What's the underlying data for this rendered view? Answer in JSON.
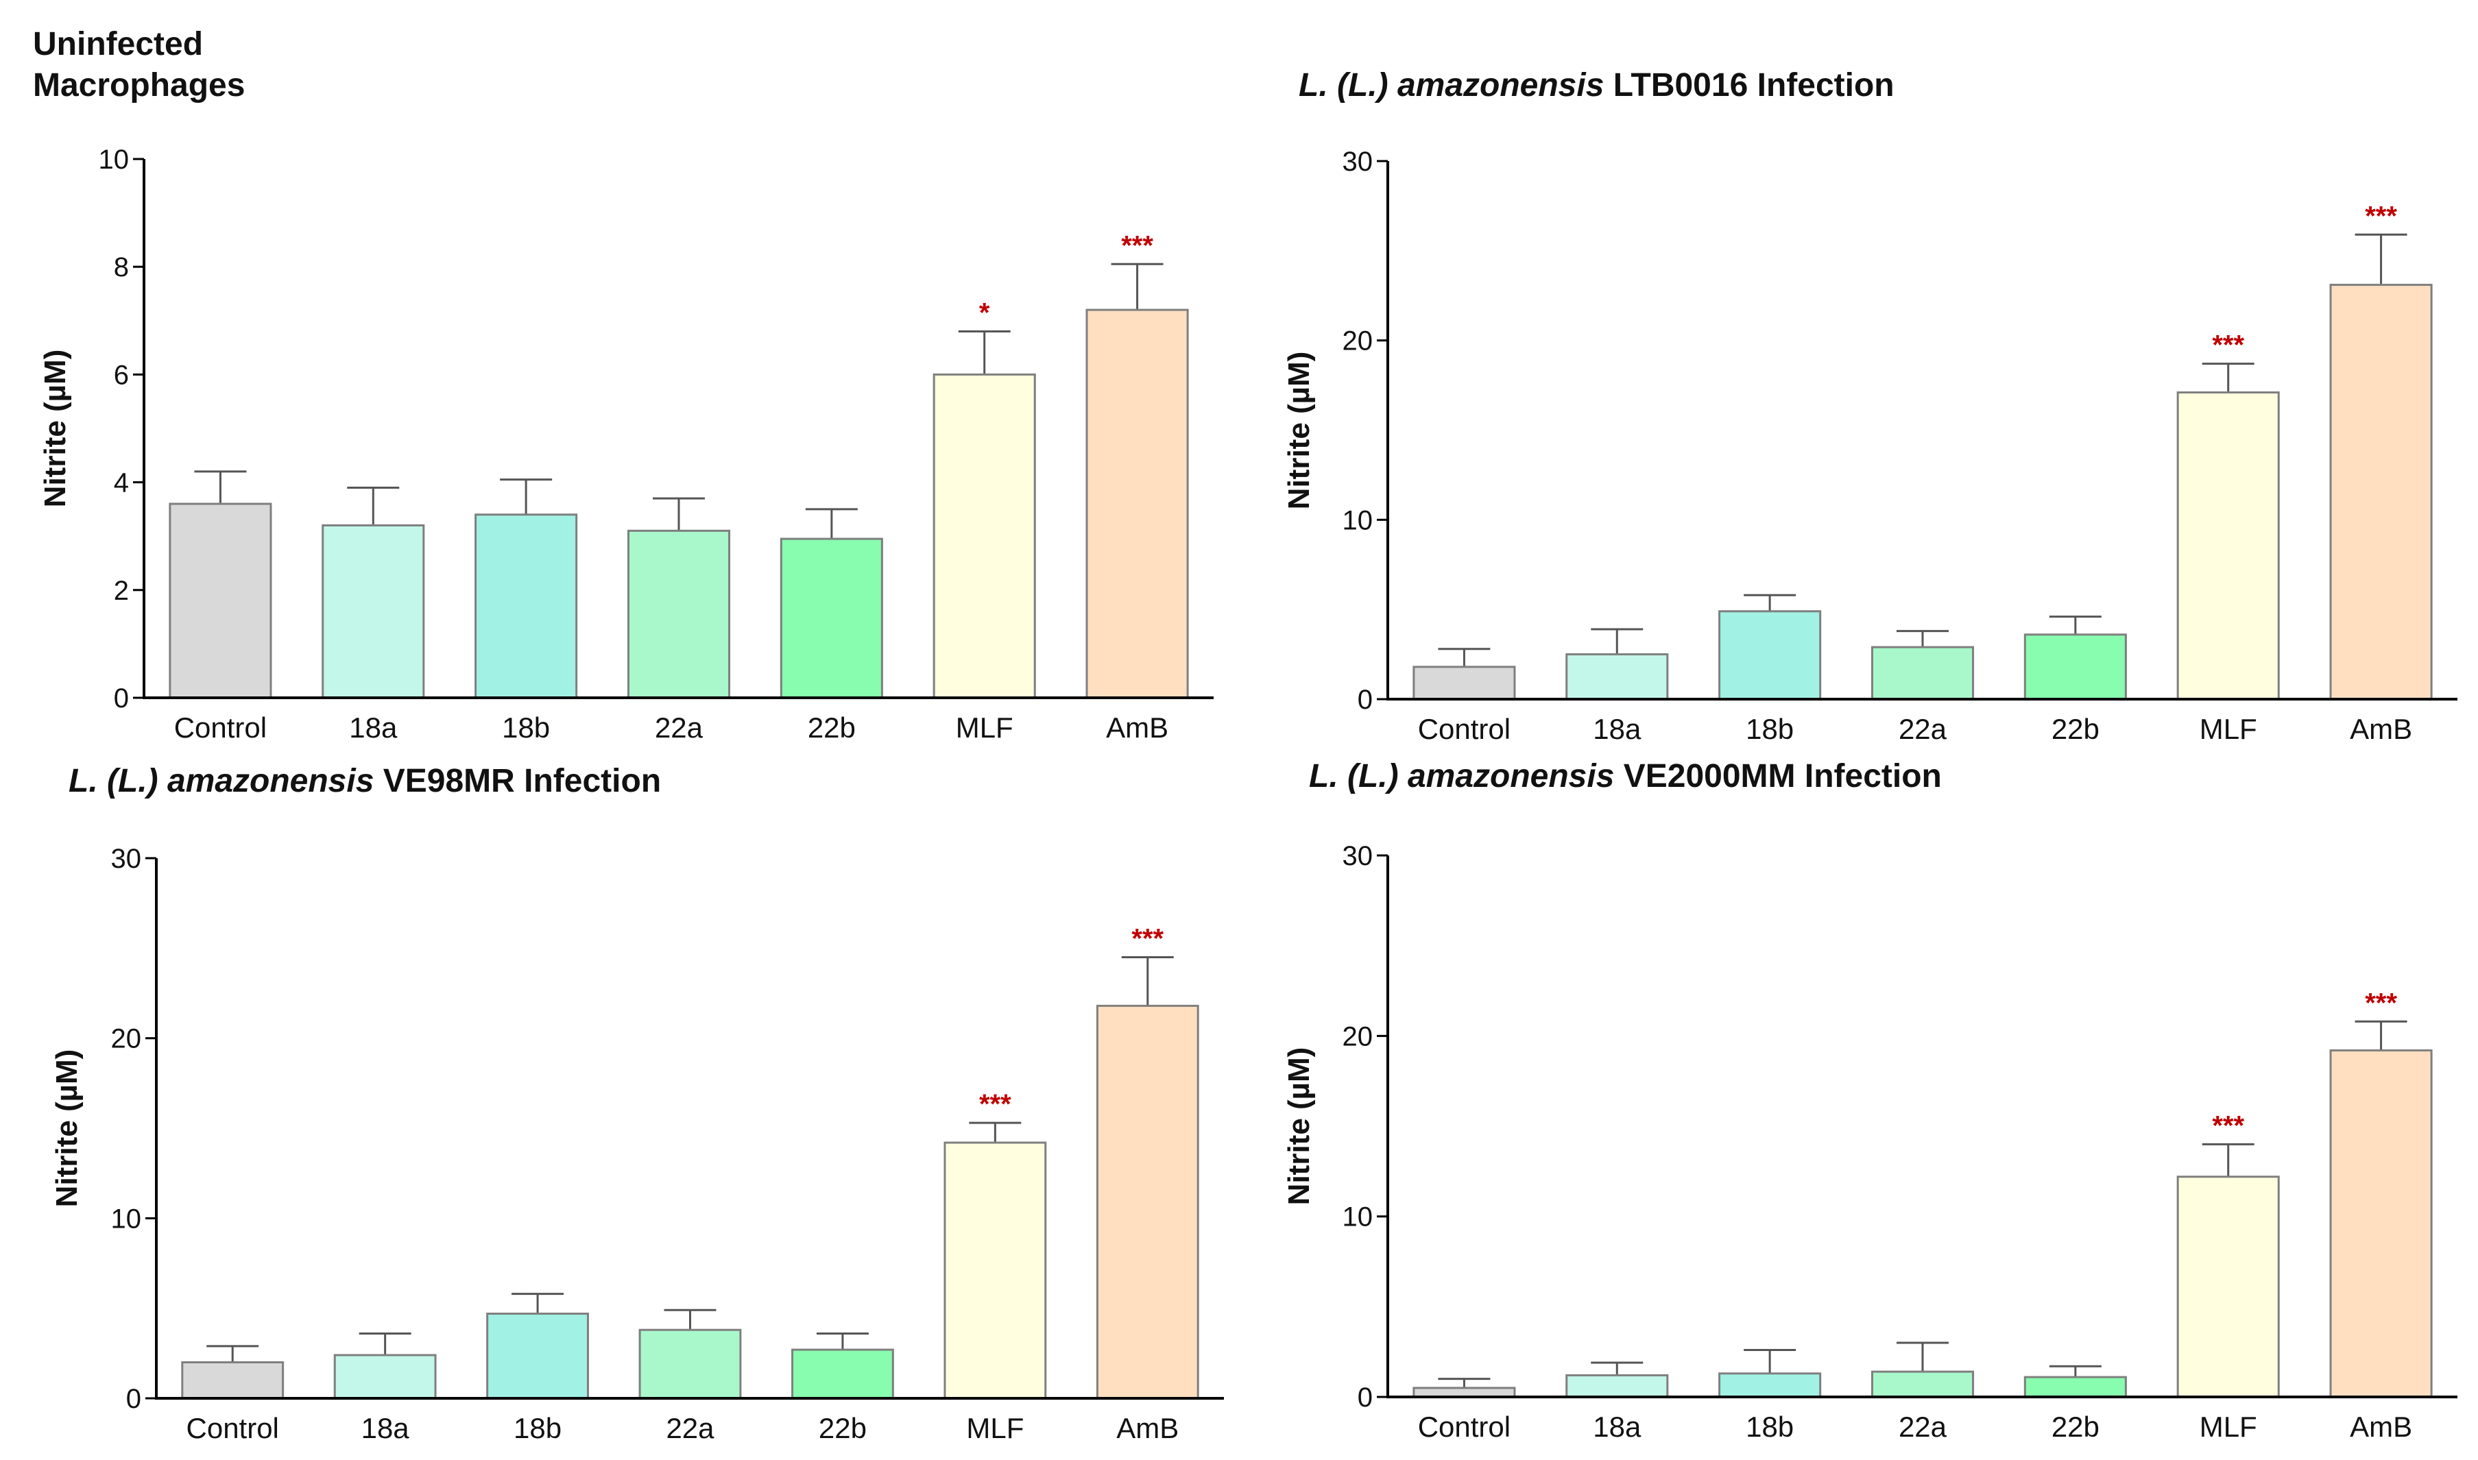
{
  "chart_data": [
    {
      "type": "bar",
      "title": "Uninfected Macrophages",
      "title_parts": {
        "line1": "Uninfected",
        "line2": "Macrophages"
      },
      "xlabel": "",
      "ylabel": "Nitrite (µM)",
      "ylim": [
        0,
        10
      ],
      "yticks": [
        "0",
        "2",
        "4",
        "6",
        "8",
        "10"
      ],
      "categories": [
        "Control",
        "18a",
        "18b",
        "22a",
        "22b",
        "MLF",
        "AmB"
      ],
      "values": [
        3.6,
        3.2,
        3.4,
        3.1,
        2.95,
        6.0,
        7.2
      ],
      "errors": [
        0.6,
        0.7,
        0.65,
        0.6,
        0.55,
        0.8,
        0.85
      ],
      "significance": [
        "",
        "",
        "",
        "",
        "",
        "*",
        "***"
      ]
    },
    {
      "type": "bar",
      "title": "L. (L.) amazonensis LTB0016 Infection",
      "title_parts": {
        "italic": "L. (L.) amazonensis",
        "rest": " LTB0016 Infection"
      },
      "xlabel": "",
      "ylabel": "Nitrite (µM)",
      "ylim": [
        0,
        30
      ],
      "yticks": [
        "0",
        "10",
        "20",
        "30"
      ],
      "categories": [
        "Control",
        "18a",
        "18b",
        "22a",
        "22b",
        "MLF",
        "AmB"
      ],
      "values": [
        1.8,
        2.5,
        4.9,
        2.9,
        3.6,
        17.1,
        23.1
      ],
      "errors": [
        1.0,
        1.4,
        0.9,
        0.9,
        1.0,
        1.6,
        2.8
      ],
      "significance": [
        "",
        "",
        "",
        "",
        "",
        "***",
        "***"
      ]
    },
    {
      "type": "bar",
      "title": "L. (L.) amazonensis VE98MR Infection",
      "title_parts": {
        "italic": "L. (L.) amazonensis",
        "rest": " VE98MR Infection"
      },
      "xlabel": "",
      "ylabel": "Nitrite (µM)",
      "ylim": [
        0,
        30
      ],
      "yticks": [
        "0",
        "10",
        "20",
        "30"
      ],
      "categories": [
        "Control",
        "18a",
        "18b",
        "22a",
        "22b",
        "MLF",
        "AmB"
      ],
      "values": [
        2.0,
        2.4,
        4.7,
        3.8,
        2.7,
        14.2,
        21.8
      ],
      "errors": [
        0.9,
        1.2,
        1.1,
        1.1,
        0.9,
        1.1,
        2.7
      ],
      "significance": [
        "",
        "",
        "",
        "",
        "",
        "***",
        "***"
      ]
    },
    {
      "type": "bar",
      "title": "L. (L.) amazonensis VE2000MM Infection",
      "title_parts": {
        "italic": "L. (L.) amazonensis",
        "rest": " VE2000MM Infection"
      },
      "xlabel": "",
      "ylabel": "Nitrite (µM)",
      "ylim": [
        0,
        30
      ],
      "yticks": [
        "0",
        "10",
        "20",
        "30"
      ],
      "categories": [
        "Control",
        "18a",
        "18b",
        "22a",
        "22b",
        "MLF",
        "AmB"
      ],
      "values": [
        0.5,
        1.2,
        1.3,
        1.4,
        1.1,
        12.2,
        19.2
      ],
      "errors": [
        0.5,
        0.7,
        1.3,
        1.6,
        0.6,
        1.8,
        1.6
      ],
      "significance": [
        "",
        "",
        "",
        "",
        "",
        "***",
        "***"
      ]
    }
  ],
  "colors": {
    "bars": [
      "#d9d9d9",
      "#c3f7e9",
      "#a1f2e4",
      "#a8f8cc",
      "#88fcaf",
      "#ffffe0",
      "#ffdfc0"
    ],
    "bar_stroke": "#7f7f7f",
    "axis": "#000000",
    "significance": "#c00000"
  }
}
